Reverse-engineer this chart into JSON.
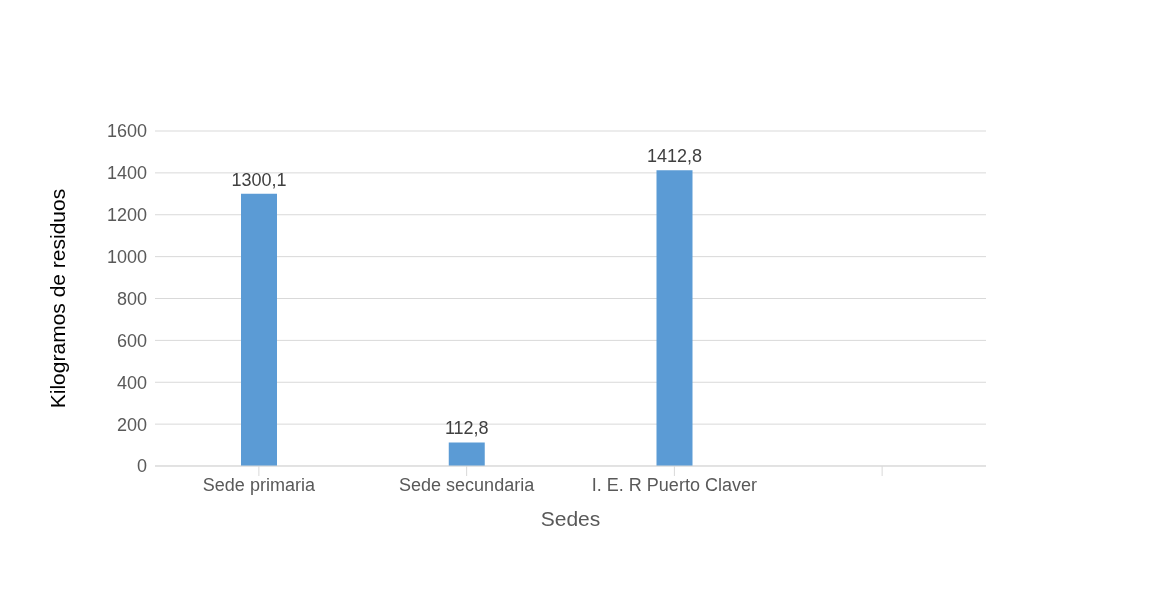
{
  "chart_data": {
    "type": "bar",
    "xlabel": "Sedes",
    "ylabel": "Kilogramos de residuos",
    "categories": [
      "Sede primaria",
      "Sede secundaria",
      "I. E. R Puerto Claver",
      null
    ],
    "values": [
      1300.1,
      112.8,
      1412.8,
      null
    ],
    "value_labels": [
      "1300,1",
      "112,8",
      "1412,8",
      null
    ],
    "color": "#5b9bd5",
    "ylim": [
      0,
      1600
    ],
    "yticks": [
      0,
      200,
      400,
      600,
      800,
      1000,
      1200,
      1400,
      1600
    ],
    "grid": "y"
  }
}
